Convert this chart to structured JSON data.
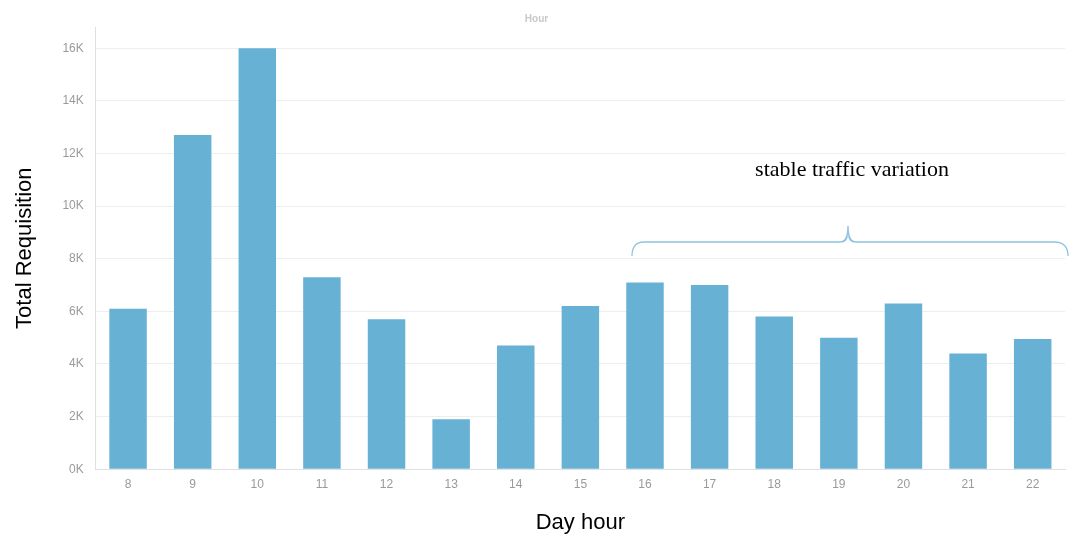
{
  "chart_data": {
    "type": "bar",
    "title": "Hour",
    "xlabel": "Day hour",
    "ylabel": "Total Requisition",
    "categories": [
      "8",
      "9",
      "10",
      "11",
      "12",
      "13",
      "14",
      "15",
      "16",
      "17",
      "18",
      "19",
      "20",
      "21",
      "22"
    ],
    "values": [
      6100,
      12700,
      16000,
      7300,
      5700,
      1900,
      4700,
      6200,
      7100,
      7000,
      5800,
      5000,
      6300,
      4400,
      4950
    ],
    "color": "#67b1d5",
    "ylim": [
      0,
      16800
    ],
    "yticks": [
      {
        "value": 0,
        "label": "0K"
      },
      {
        "value": 2000,
        "label": "2K"
      },
      {
        "value": 4000,
        "label": "4K"
      },
      {
        "value": 6000,
        "label": "6K"
      },
      {
        "value": 8000,
        "label": "8K"
      },
      {
        "value": 10000,
        "label": "10K"
      },
      {
        "value": 12000,
        "label": "12K"
      },
      {
        "value": 14000,
        "label": "14K"
      },
      {
        "value": 16000,
        "label": "16K"
      }
    ],
    "grid": "y",
    "annotations": [
      "stable traffic variation"
    ]
  }
}
